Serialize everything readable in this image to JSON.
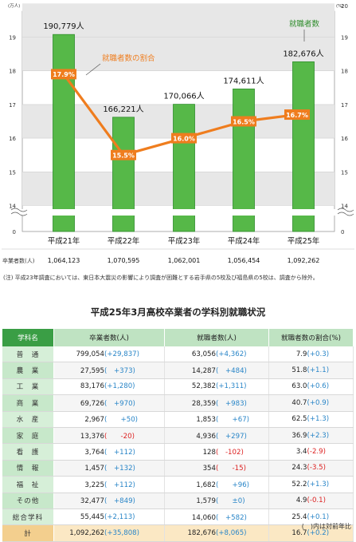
{
  "chart_data": {
    "type": "bar",
    "categories": [
      "平成21年",
      "平成22年",
      "平成23年",
      "平成24年",
      "平成25年"
    ],
    "series": [
      {
        "name": "就職者数",
        "values": [
          190779,
          166221,
          170066,
          174611,
          182676
        ],
        "labels": [
          "190,779人",
          "166,221人",
          "170,066人",
          "174,611人",
          "182,676人"
        ]
      },
      {
        "name": "就職者数の割合",
        "values": [
          17.9,
          15.5,
          16.0,
          16.5,
          16.7
        ],
        "labels": [
          "17.9%",
          "15.5%",
          "16.0%",
          "16.5%",
          "16.7%"
        ]
      }
    ],
    "left_axis": {
      "unit": "(万人)",
      "ticks": [
        "19",
        "18",
        "17",
        "16",
        "15",
        "14",
        "0"
      ]
    },
    "right_axis": {
      "unit": "(%)",
      "ticks": [
        "20",
        "19",
        "18",
        "17",
        "16",
        "15",
        "14",
        "0"
      ]
    },
    "ylim_left": [
      13.3,
      20.0
    ],
    "ylim_right": [
      13.3,
      20.0
    ],
    "legend_bar": "就職者数",
    "legend_line": "就職者数の割合",
    "graduates_label": "卒業者数(人)",
    "graduates": [
      "1,064,123",
      "1,070,595",
      "1,062,001",
      "1,056,454",
      "1,092,262"
    ],
    "colors": {
      "bar": "#56b848",
      "bar_dark": "#2f8d2c",
      "line": "#ef7d1e",
      "band": "#e7e7e7"
    }
  },
  "note": "(注) 平成23年調査においては、東日本大震災の影響により調査が困難とする岩手県の5校及び福島県の5校は、調査から除外。",
  "table": {
    "title": "平成25年3月高校卒業者の学科別就職状況",
    "headers": [
      "学科名",
      "卒業者数(人)",
      "就職者数(人)",
      "就職者数の割合(%)"
    ],
    "rows": [
      {
        "name": "普　通",
        "grad": "799,054",
        "grad_chg": "(+29,837)",
        "emp": "63,056",
        "emp_chg": "(+4,362)",
        "rate": "7.9",
        "rate_chg": "(+0.3)"
      },
      {
        "name": "農　業",
        "grad": "27,595",
        "grad_chg": "(　+373)",
        "emp": "14,287",
        "emp_chg": "(　+484)",
        "rate": "51.8",
        "rate_chg": "(+1.1)"
      },
      {
        "name": "工　業",
        "grad": "83,176",
        "grad_chg": "(+1,280)",
        "emp": "52,382",
        "emp_chg": "(+1,311)",
        "rate": "63.0",
        "rate_chg": "(+0.6)"
      },
      {
        "name": "商　業",
        "grad": "69,726",
        "grad_chg": "(　+970)",
        "emp": "28,359",
        "emp_chg": "(　+983)",
        "rate": "40.7",
        "rate_chg": "(+0.9)"
      },
      {
        "name": "水　産",
        "grad": "2,967",
        "grad_chg": "(　　+50)",
        "emp": "1,853",
        "emp_chg": "(　　+67)",
        "rate": "62.5",
        "rate_chg": "(+1.3)"
      },
      {
        "name": "家　庭",
        "grad": "13,376",
        "grad_chg": "(　　-20)",
        "emp": "4,936",
        "emp_chg": "(　+297)",
        "rate": "36.9",
        "rate_chg": "(+2.3)"
      },
      {
        "name": "看　護",
        "grad": "3,764",
        "grad_chg": "(　+112)",
        "emp": "128",
        "emp_chg": "(　-102)",
        "rate": "3.4",
        "rate_chg": "(-2.9)"
      },
      {
        "name": "情　報",
        "grad": "1,457",
        "grad_chg": "(　+132)",
        "emp": "354",
        "emp_chg": "(　　-15)",
        "rate": "24.3",
        "rate_chg": "(-3.5)"
      },
      {
        "name": "福　祉",
        "grad": "3,225",
        "grad_chg": "(　+112)",
        "emp": "1,682",
        "emp_chg": "(　　+96)",
        "rate": "52.2",
        "rate_chg": "(+1.3)"
      },
      {
        "name": "その他",
        "grad": "32,477",
        "grad_chg": "(　+849)",
        "emp": "1,579",
        "emp_chg": "(　　±0)",
        "rate": "4.9",
        "rate_chg": "(-0.1)"
      },
      {
        "name": "総合学科",
        "grad": "55,445",
        "grad_chg": "(+2,113)",
        "emp": "14,060",
        "emp_chg": "(　+582)",
        "rate": "25.4",
        "rate_chg": "(+0.1)"
      },
      {
        "name": "計",
        "grad": "1,092,262",
        "grad_chg": "(+35,808)",
        "emp": "182,676",
        "emp_chg": "(+8,065)",
        "rate": "16.7",
        "rate_chg": "(+0.2)"
      }
    ],
    "footnote": "(　)内は対前年比"
  }
}
